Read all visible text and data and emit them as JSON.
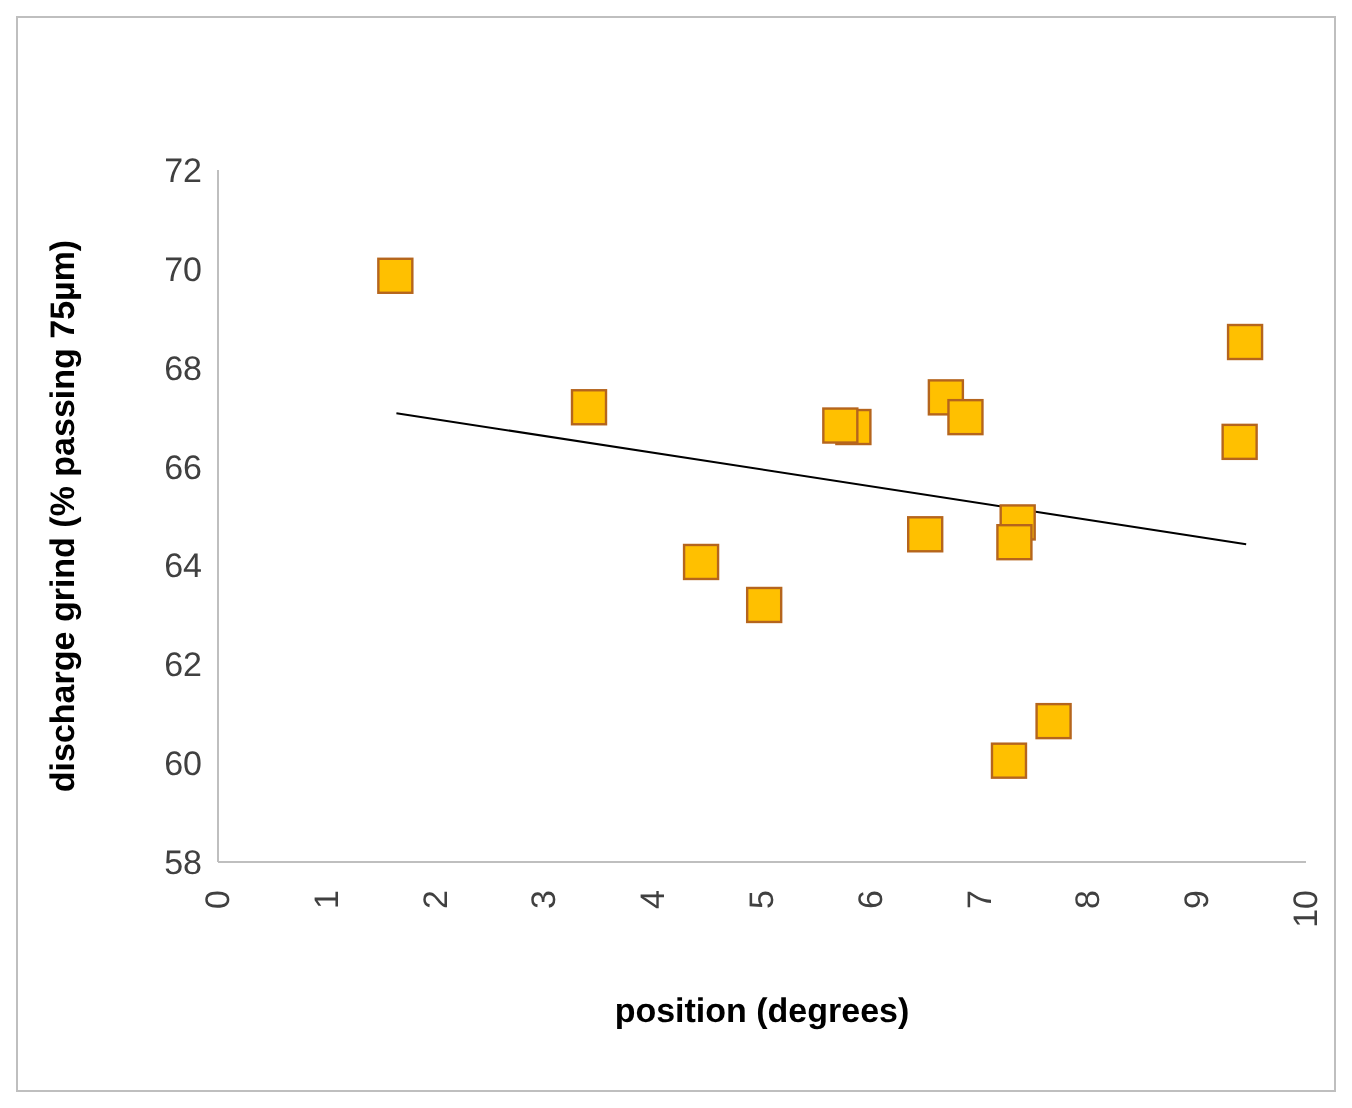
{
  "chart_data": {
    "type": "scatter",
    "xlabel": "position (degrees)",
    "ylabel": "discharge grind (% passing 75µm)",
    "xlim": [
      0,
      10
    ],
    "xticks": [
      0,
      1,
      2,
      3,
      4,
      5,
      6,
      7,
      8,
      9,
      10
    ],
    "ylim": [
      58,
      72
    ],
    "yticks": [
      58,
      60,
      62,
      64,
      66,
      68,
      70,
      72
    ],
    "series": [
      {
        "color": "#ffc000",
        "marker": "square",
        "x": [
          1.63,
          3.41,
          4.44,
          5.02,
          5.84,
          5.72,
          6.69,
          6.87,
          6.5,
          7.35,
          7.32,
          7.68,
          7.27,
          9.44,
          9.39
        ],
        "values": [
          69.86,
          67.2,
          64.07,
          63.2,
          66.8,
          66.83,
          67.4,
          67.0,
          64.63,
          64.87,
          64.47,
          60.85,
          60.05,
          68.52,
          66.5
        ]
      },
      {
        "type": "line",
        "color": "#000000",
        "x": [
          1.64,
          9.45
        ],
        "values": [
          67.08,
          64.43
        ]
      }
    ]
  }
}
